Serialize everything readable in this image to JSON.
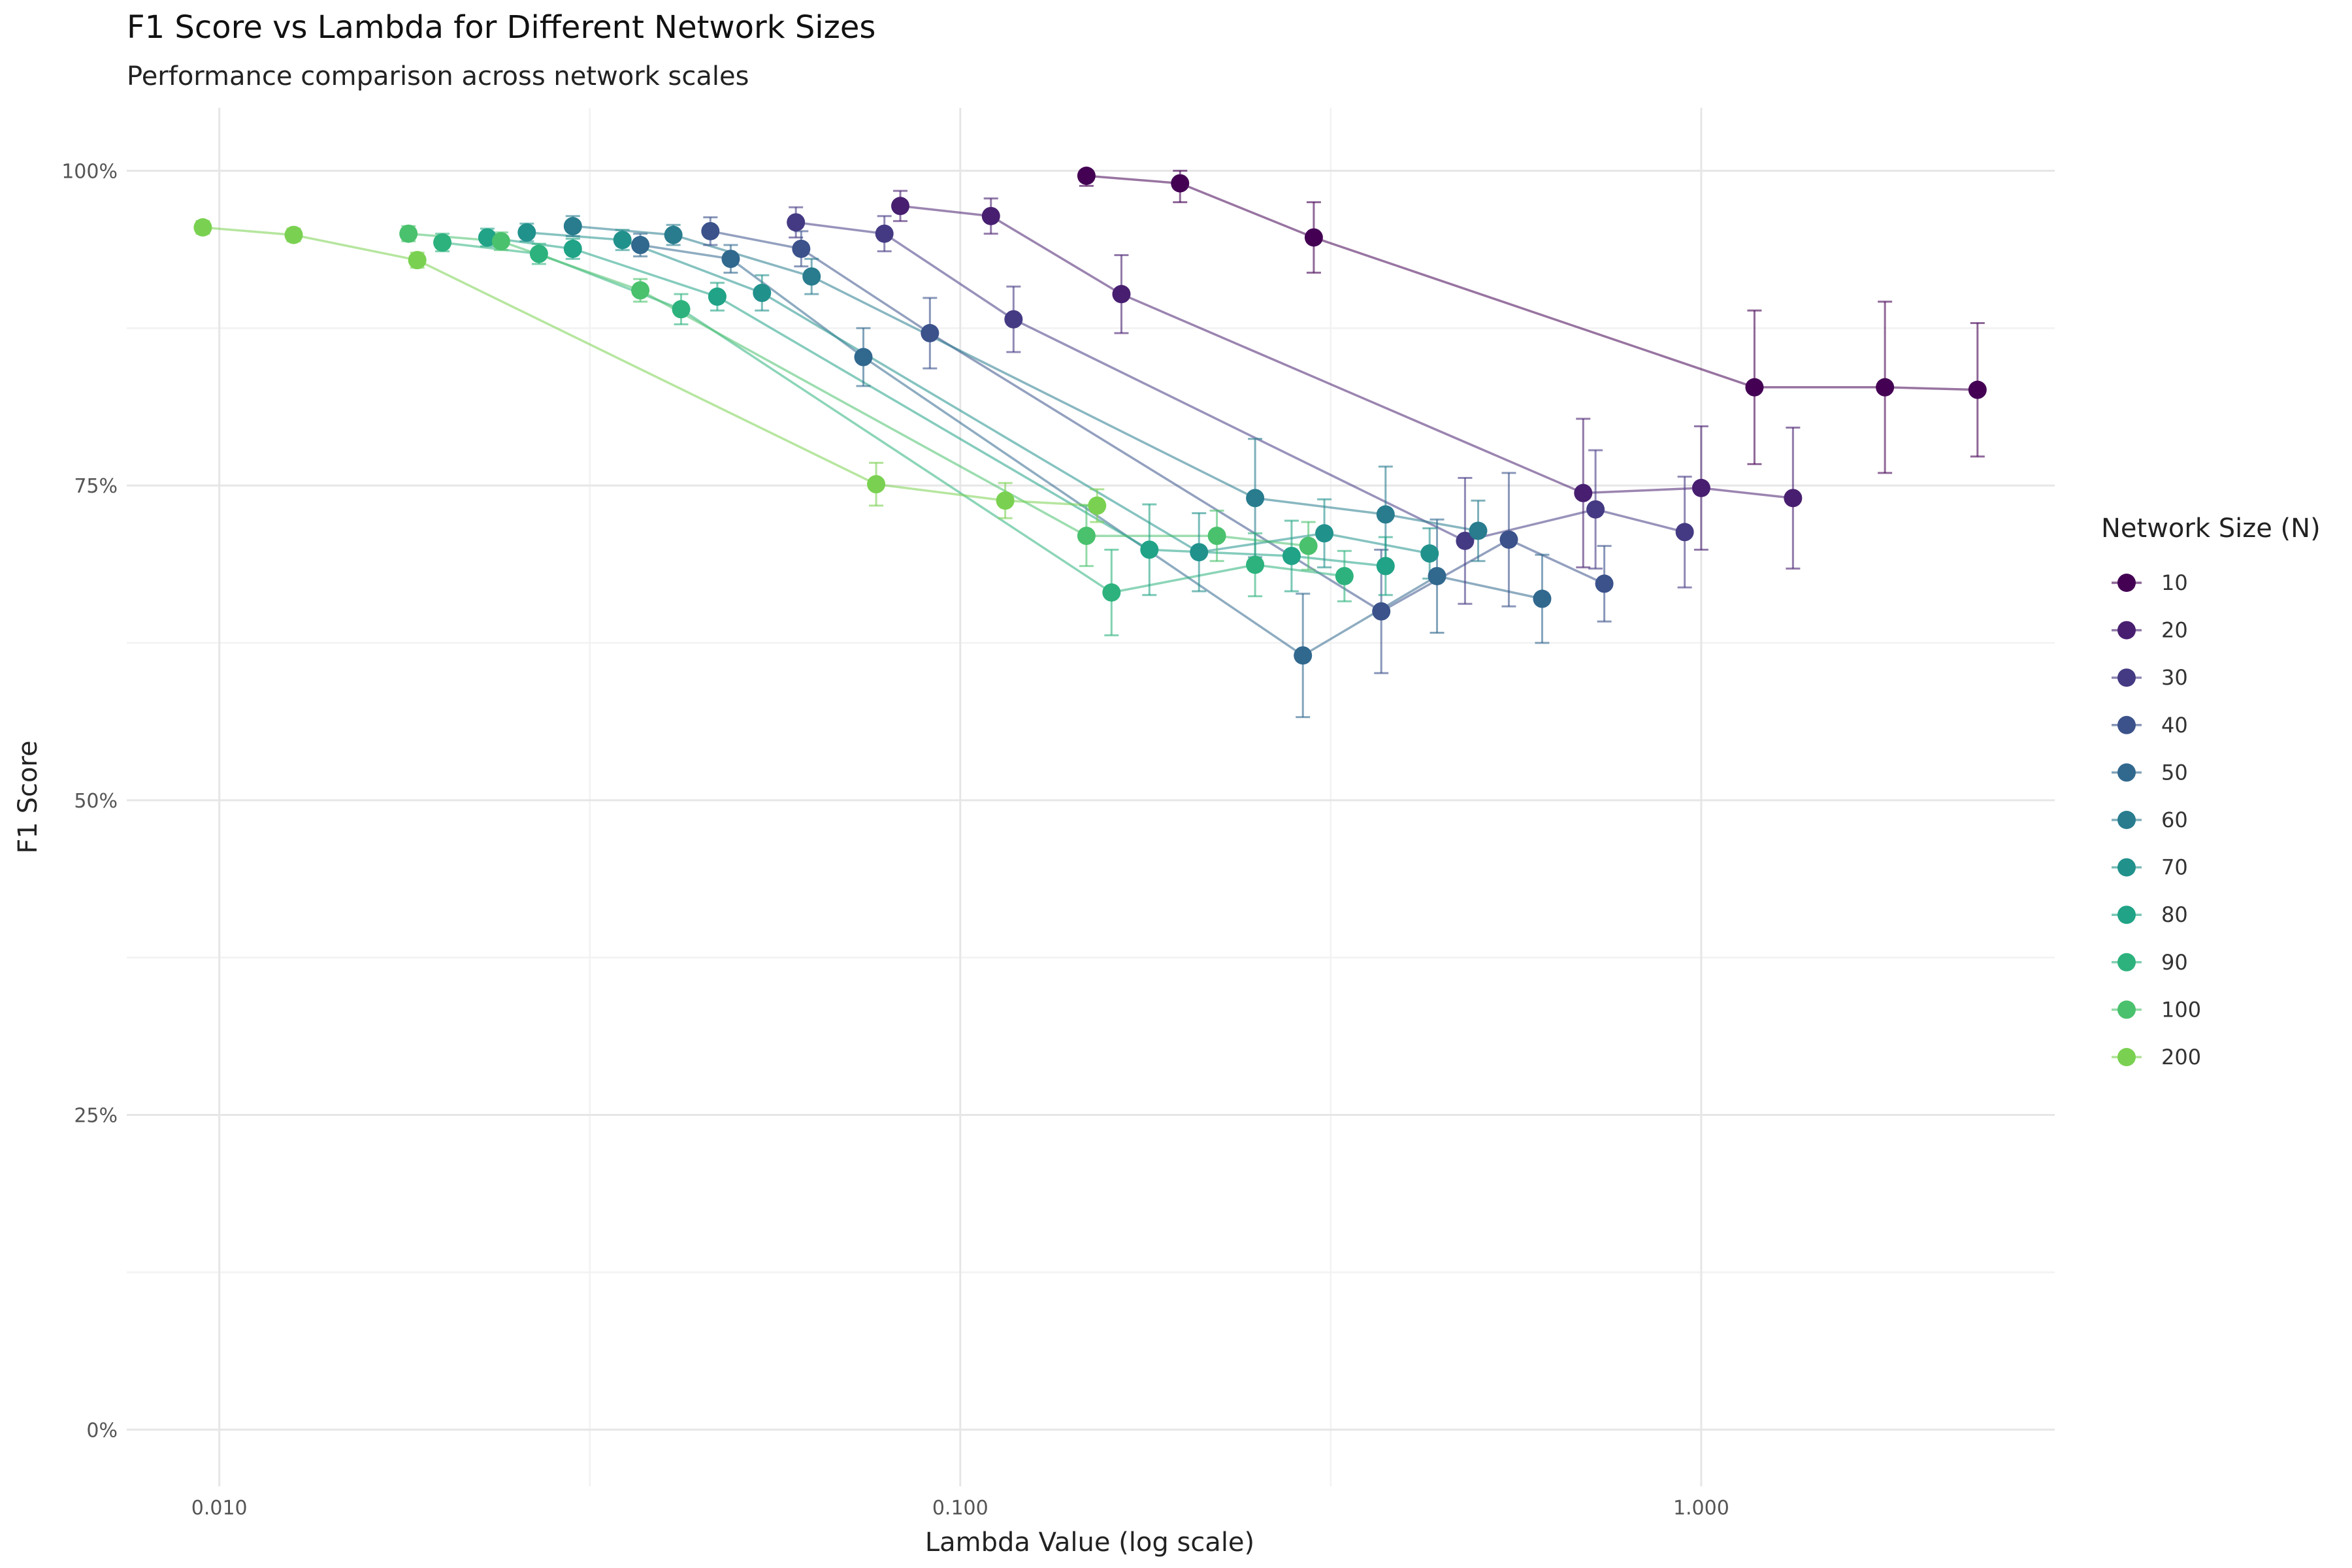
{
  "chart_data": {
    "type": "line",
    "title": "F1 Score vs Lambda for Different Network Sizes",
    "subtitle": "Performance comparison across network scales",
    "xlabel": "Lambda Value (log scale)",
    "ylabel": "F1 Score",
    "x_scale": "log",
    "xlim": [
      0.0075,
      3.0
    ],
    "ylim": [
      -0.045,
      1.05
    ],
    "x_ticks": [
      0.01,
      0.1,
      1.0
    ],
    "x_tick_labels": [
      "0.010",
      "0.100",
      "1.000"
    ],
    "y_ticks": [
      0,
      0.25,
      0.5,
      0.75,
      1.0
    ],
    "y_tick_labels": [
      "0%",
      "25%",
      "50%",
      "75%",
      "100%"
    ],
    "grid": true,
    "legend_title": "Network Size (N)",
    "legend_position": "right",
    "series": [
      {
        "name": "10",
        "color": "#440154",
        "points": [
          {
            "x": 0.148,
            "y": 0.996,
            "err": 0.008
          },
          {
            "x": 0.198,
            "y": 0.99,
            "err": 0.015
          },
          {
            "x": 0.3,
            "y": 0.947,
            "err": 0.028
          },
          {
            "x": 1.18,
            "y": 0.828,
            "err": 0.061
          },
          {
            "x": 1.77,
            "y": 0.828,
            "err": 0.068
          },
          {
            "x": 2.36,
            "y": 0.826,
            "err": 0.053
          }
        ]
      },
      {
        "name": "20",
        "color": "#481F70",
        "points": [
          {
            "x": 0.083,
            "y": 0.972,
            "err": 0.012
          },
          {
            "x": 0.11,
            "y": 0.964,
            "err": 0.014
          },
          {
            "x": 0.165,
            "y": 0.902,
            "err": 0.031
          },
          {
            "x": 0.693,
            "y": 0.744,
            "err": 0.059
          },
          {
            "x": 1.0,
            "y": 0.748,
            "err": 0.049
          },
          {
            "x": 1.33,
            "y": 0.74,
            "err": 0.056
          }
        ]
      },
      {
        "name": "30",
        "color": "#443A83",
        "points": [
          {
            "x": 0.06,
            "y": 0.959,
            "err": 0.012
          },
          {
            "x": 0.079,
            "y": 0.95,
            "err": 0.014
          },
          {
            "x": 0.118,
            "y": 0.882,
            "err": 0.026
          },
          {
            "x": 0.48,
            "y": 0.706,
            "err": 0.05
          },
          {
            "x": 0.72,
            "y": 0.731,
            "err": 0.047
          },
          {
            "x": 0.95,
            "y": 0.713,
            "err": 0.044
          }
        ]
      },
      {
        "name": "40",
        "color": "#3B528B",
        "points": [
          {
            "x": 0.046,
            "y": 0.952,
            "err": 0.011
          },
          {
            "x": 0.061,
            "y": 0.938,
            "err": 0.014
          },
          {
            "x": 0.091,
            "y": 0.871,
            "err": 0.028
          },
          {
            "x": 0.37,
            "y": 0.65,
            "err": 0.049
          },
          {
            "x": 0.55,
            "y": 0.707,
            "err": 0.053
          },
          {
            "x": 0.74,
            "y": 0.672,
            "err": 0.03
          }
        ]
      },
      {
        "name": "50",
        "color": "#31688E",
        "points": [
          {
            "x": 0.037,
            "y": 0.941,
            "err": 0.009
          },
          {
            "x": 0.049,
            "y": 0.93,
            "err": 0.011
          },
          {
            "x": 0.074,
            "y": 0.852,
            "err": 0.023
          },
          {
            "x": 0.29,
            "y": 0.615,
            "err": 0.049
          },
          {
            "x": 0.44,
            "y": 0.678,
            "err": 0.045
          },
          {
            "x": 0.61,
            "y": 0.66,
            "err": 0.035
          }
        ]
      },
      {
        "name": "60",
        "color": "#287C8E",
        "points": [
          {
            "x": 0.03,
            "y": 0.956,
            "err": 0.008
          },
          {
            "x": 0.041,
            "y": 0.949,
            "err": 0.008
          },
          {
            "x": 0.063,
            "y": 0.916,
            "err": 0.014
          },
          {
            "x": 0.25,
            "y": 0.74,
            "err": 0.047
          },
          {
            "x": 0.375,
            "y": 0.727,
            "err": 0.038
          },
          {
            "x": 0.5,
            "y": 0.714,
            "err": 0.024
          }
        ]
      },
      {
        "name": "70",
        "color": "#21918C",
        "points": [
          {
            "x": 0.026,
            "y": 0.951,
            "err": 0.007
          },
          {
            "x": 0.035,
            "y": 0.945,
            "err": 0.008
          },
          {
            "x": 0.054,
            "y": 0.903,
            "err": 0.014
          },
          {
            "x": 0.21,
            "y": 0.697,
            "err": 0.031
          },
          {
            "x": 0.31,
            "y": 0.712,
            "err": 0.027
          },
          {
            "x": 0.43,
            "y": 0.696,
            "err": 0.02
          }
        ]
      },
      {
        "name": "80",
        "color": "#20A386",
        "points": [
          {
            "x": 0.023,
            "y": 0.947,
            "err": 0.007
          },
          {
            "x": 0.03,
            "y": 0.938,
            "err": 0.008
          },
          {
            "x": 0.047,
            "y": 0.9,
            "err": 0.011
          },
          {
            "x": 0.18,
            "y": 0.699,
            "err": 0.036
          },
          {
            "x": 0.28,
            "y": 0.694,
            "err": 0.028
          },
          {
            "x": 0.375,
            "y": 0.686,
            "err": 0.023
          }
        ]
      },
      {
        "name": "90",
        "color": "#2DB27D",
        "points": [
          {
            "x": 0.02,
            "y": 0.943,
            "err": 0.007
          },
          {
            "x": 0.027,
            "y": 0.934,
            "err": 0.008
          },
          {
            "x": 0.042,
            "y": 0.89,
            "err": 0.012
          },
          {
            "x": 0.16,
            "y": 0.665,
            "err": 0.034
          },
          {
            "x": 0.25,
            "y": 0.687,
            "err": 0.025
          },
          {
            "x": 0.33,
            "y": 0.678,
            "err": 0.02
          }
        ]
      },
      {
        "name": "100",
        "color": "#4AC16D",
        "points": [
          {
            "x": 0.018,
            "y": 0.95,
            "err": 0.006
          },
          {
            "x": 0.024,
            "y": 0.944,
            "err": 0.007
          },
          {
            "x": 0.037,
            "y": 0.905,
            "err": 0.009
          },
          {
            "x": 0.148,
            "y": 0.71,
            "err": 0.024
          },
          {
            "x": 0.222,
            "y": 0.71,
            "err": 0.02
          },
          {
            "x": 0.295,
            "y": 0.702,
            "err": 0.019
          }
        ]
      },
      {
        "name": "200",
        "color": "#7AD151",
        "points": [
          {
            "x": 0.0095,
            "y": 0.955,
            "err": 0.005
          },
          {
            "x": 0.0126,
            "y": 0.949,
            "err": 0.005
          },
          {
            "x": 0.0185,
            "y": 0.929,
            "err": 0.006
          },
          {
            "x": 0.077,
            "y": 0.751,
            "err": 0.017
          },
          {
            "x": 0.115,
            "y": 0.738,
            "err": 0.014
          },
          {
            "x": 0.153,
            "y": 0.734,
            "err": 0.013
          }
        ]
      }
    ]
  }
}
